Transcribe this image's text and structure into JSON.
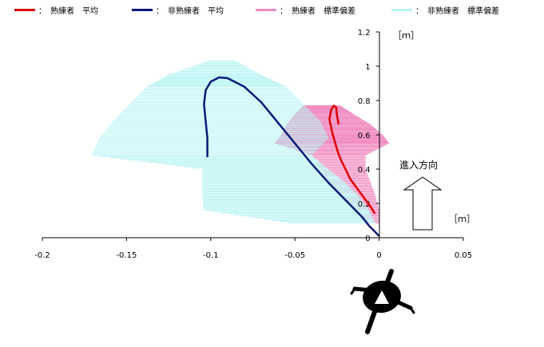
{
  "legend": {
    "items": [
      {
        "label": "：　熟練者　平均",
        "color": "#e00000"
      },
      {
        "label": "：　非熟練者　平均",
        "color": "#0a1a78"
      },
      {
        "label": "：　熟練者　標準偏差",
        "color": "#f08cc0"
      },
      {
        "label": "：　非熟練者　標準偏差",
        "color": "#b8f4f4"
      }
    ]
  },
  "chart_data": {
    "type": "line",
    "x_ticks": [
      "-0.2",
      "-0.15",
      "-0.1",
      "-0.05",
      "0",
      "0.05"
    ],
    "y_ticks": [
      "0",
      "0.2",
      "0.4",
      "0.6",
      "0.8",
      "1",
      "1.2"
    ],
    "xlim": [
      -0.2,
      0.05
    ],
    "ylim": [
      0,
      1.2
    ],
    "xunit": "［ｍ］",
    "yunit": "［ｍ］",
    "direction_label": "進入方向",
    "series": [
      {
        "name": "熟練者　平均",
        "color": "#e00000",
        "x": [
          -0.0025,
          -0.005,
          -0.008,
          -0.011,
          -0.014,
          -0.017,
          -0.019,
          -0.021,
          -0.023,
          -0.0245,
          -0.026,
          -0.028,
          -0.0295,
          -0.0285,
          -0.027,
          -0.0255,
          -0.025,
          -0.024
        ],
        "y": [
          0.14,
          0.18,
          0.22,
          0.26,
          0.3,
          0.34,
          0.38,
          0.42,
          0.46,
          0.5,
          0.55,
          0.62,
          0.69,
          0.745,
          0.77,
          0.76,
          0.71,
          0.66
        ]
      },
      {
        "name": "非熟練者　平均",
        "color": "#0a1a78",
        "x": [
          0.0,
          -0.002,
          -0.006,
          -0.01,
          -0.02,
          -0.03,
          -0.04,
          -0.05,
          -0.06,
          -0.07,
          -0.08,
          -0.09,
          -0.095,
          -0.1,
          -0.103,
          -0.104,
          -0.103,
          -0.102,
          -0.102
        ],
        "y": [
          0.01,
          0.03,
          0.07,
          0.12,
          0.22,
          0.32,
          0.43,
          0.55,
          0.67,
          0.79,
          0.88,
          0.93,
          0.935,
          0.91,
          0.86,
          0.78,
          0.68,
          0.58,
          0.47
        ]
      }
    ],
    "bands": [
      {
        "name": "熟練者　標準偏差",
        "color": "#f08cc0",
        "rows": [
          {
            "y": 0.77,
            "x1": -0.045,
            "x2": -0.023
          },
          {
            "y": 0.72,
            "x1": -0.05,
            "x2": -0.015
          },
          {
            "y": 0.66,
            "x1": -0.055,
            "x2": -0.005
          },
          {
            "y": 0.6,
            "x1": -0.058,
            "x2": 0.002
          },
          {
            "y": 0.55,
            "x1": -0.062,
            "x2": 0.006
          },
          {
            "y": 0.48,
            "x1": -0.04,
            "x2": -0.008
          },
          {
            "y": 0.4,
            "x1": -0.035,
            "x2": -0.008
          },
          {
            "y": 0.32,
            "x1": -0.03,
            "x2": -0.005
          },
          {
            "y": 0.24,
            "x1": -0.022,
            "x2": -0.002
          },
          {
            "y": 0.16,
            "x1": -0.012,
            "x2": 0.0
          },
          {
            "y": 0.08,
            "x1": -0.006,
            "x2": 0.0
          }
        ]
      },
      {
        "name": "非熟練者　標準偏差",
        "color": "#b8f4f4",
        "rows": [
          {
            "y": 1.03,
            "x1": -0.102,
            "x2": -0.085
          },
          {
            "y": 0.95,
            "x1": -0.125,
            "x2": -0.07
          },
          {
            "y": 0.88,
            "x1": -0.138,
            "x2": -0.055
          },
          {
            "y": 0.78,
            "x1": -0.148,
            "x2": -0.045
          },
          {
            "y": 0.68,
            "x1": -0.158,
            "x2": -0.035
          },
          {
            "y": 0.58,
            "x1": -0.166,
            "x2": -0.03
          },
          {
            "y": 0.48,
            "x1": -0.171,
            "x2": -0.04
          },
          {
            "y": 0.4,
            "x1": -0.105,
            "x2": -0.03
          },
          {
            "y": 0.32,
            "x1": -0.105,
            "x2": -0.02
          },
          {
            "y": 0.24,
            "x1": -0.105,
            "x2": -0.012
          },
          {
            "y": 0.16,
            "x1": -0.104,
            "x2": -0.006
          },
          {
            "y": 0.08,
            "x1": -0.05,
            "x2": -0.002
          }
        ]
      }
    ],
    "grid": false,
    "legend_position": "top"
  }
}
